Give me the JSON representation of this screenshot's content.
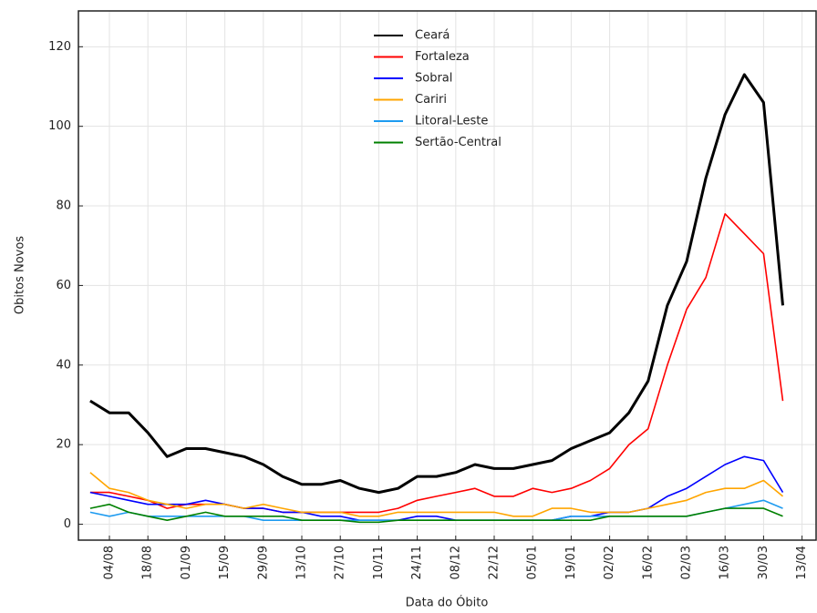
{
  "chart_data": {
    "type": "line",
    "xlabel": "Data do Óbito",
    "ylabel": "Obitos Novos",
    "categories": [
      null,
      "04/08",
      null,
      "18/08",
      null,
      "01/09",
      null,
      "15/09",
      null,
      "29/09",
      null,
      "13/10",
      null,
      "27/10",
      null,
      "10/11",
      null,
      "24/11",
      null,
      "08/12",
      null,
      "22/12",
      null,
      "05/01",
      null,
      "19/01",
      null,
      "02/02",
      null,
      "16/02",
      null,
      "02/03",
      null,
      "16/03",
      null,
      "30/03",
      null,
      "13/04"
    ],
    "series": [
      {
        "name": "Ceará",
        "color": "#000000",
        "values": [
          31,
          28,
          28,
          23,
          17,
          19,
          19,
          18,
          17,
          15,
          12,
          10,
          10,
          11,
          9,
          8,
          9,
          12,
          12,
          13,
          15,
          14,
          14,
          15,
          16,
          19,
          21,
          23,
          28,
          36,
          55,
          66,
          87,
          103,
          113,
          106,
          55,
          null
        ]
      },
      {
        "name": "Fortaleza",
        "color": "#ff0000",
        "values": [
          8,
          8,
          7,
          6,
          4,
          5,
          5,
          5,
          4,
          4,
          3,
          3,
          3,
          3,
          3,
          3,
          4,
          6,
          7,
          8,
          9,
          7,
          7,
          9,
          8,
          9,
          11,
          14,
          20,
          24,
          40,
          54,
          62,
          78,
          73,
          68,
          31,
          null
        ]
      },
      {
        "name": "Sobral",
        "color": "#0000ff",
        "values": [
          8,
          7,
          6,
          5,
          5,
          5,
          6,
          5,
          4,
          4,
          3,
          3,
          2,
          2,
          1,
          1,
          1,
          2,
          2,
          1,
          1,
          1,
          1,
          1,
          1,
          2,
          2,
          3,
          3,
          4,
          7,
          9,
          12,
          15,
          17,
          16,
          8,
          null
        ]
      },
      {
        "name": "Cariri",
        "color": "#ffa500",
        "values": [
          13,
          9,
          8,
          6,
          5,
          4,
          5,
          5,
          4,
          5,
          4,
          3,
          3,
          3,
          2,
          2,
          3,
          3,
          3,
          3,
          3,
          3,
          2,
          2,
          4,
          4,
          3,
          3,
          3,
          4,
          5,
          6,
          8,
          9,
          9,
          11,
          7,
          null
        ]
      },
      {
        "name": "Litoral-Leste",
        "color": "#1e9bf0",
        "values": [
          3,
          2,
          3,
          2,
          2,
          2,
          2,
          2,
          2,
          1,
          1,
          1,
          1,
          1,
          1,
          1,
          1,
          1,
          1,
          1,
          1,
          1,
          1,
          1,
          1,
          2,
          2,
          2,
          2,
          2,
          2,
          2,
          3,
          4,
          5,
          6,
          4,
          null
        ]
      },
      {
        "name": "Sertão-Central",
        "color": "#008000",
        "values": [
          4,
          5,
          3,
          2,
          1,
          2,
          3,
          2,
          2,
          2,
          2,
          1,
          1,
          1,
          0.5,
          0.5,
          1,
          1,
          1,
          1,
          1,
          1,
          1,
          1,
          1,
          1,
          1,
          2,
          2,
          2,
          2,
          2,
          3,
          4,
          4,
          4,
          2,
          null
        ]
      }
    ],
    "ylim": [
      -4,
      129
    ],
    "yticks": [
      0,
      20,
      40,
      60,
      80,
      100,
      120
    ],
    "grid": true,
    "legend": "upper center"
  }
}
